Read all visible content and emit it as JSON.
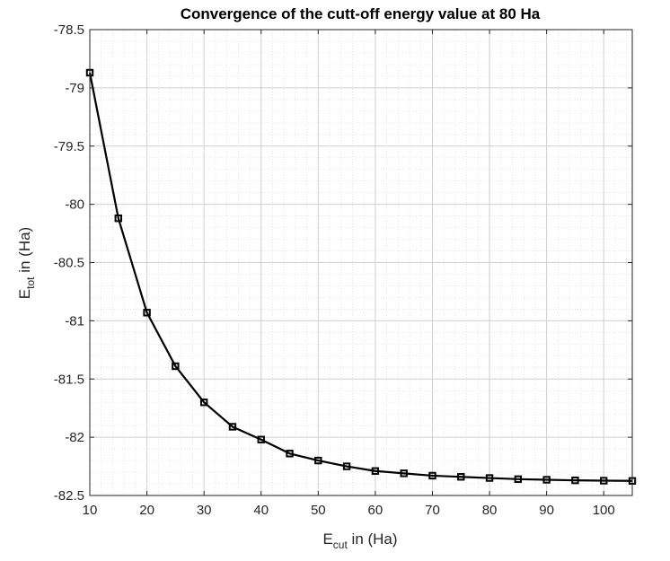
{
  "chart_data": {
    "type": "line",
    "title": "Convergence of the cutt-off energy value at 80 Ha",
    "xlabel": {
      "base": "E",
      "sub": "cut",
      "rest": " in (Ha)"
    },
    "ylabel": {
      "base": "E",
      "sub": "tot",
      "rest": " in (Ha)"
    },
    "xlim": [
      10,
      105
    ],
    "ylim": [
      -82.5,
      -78.5
    ],
    "xticks": [
      10,
      20,
      30,
      40,
      50,
      60,
      70,
      80,
      90,
      100
    ],
    "xtick_labels": [
      "10",
      "20",
      "30",
      "40",
      "50",
      "60",
      "70",
      "80",
      "90",
      "100"
    ],
    "yticks": [
      -78.5,
      -79,
      -79.5,
      -80,
      -80.5,
      -81,
      -81.5,
      -82,
      -82.5
    ],
    "ytick_labels": [
      "-78.5",
      "-79",
      "-79.5",
      "-80",
      "-80.5",
      "-81",
      "-81.5",
      "-82",
      "-82.5"
    ],
    "grid": true,
    "minor_grid": true,
    "line_color": "#000000",
    "marker": "square",
    "x": [
      10,
      15,
      20,
      25,
      30,
      35,
      40,
      45,
      50,
      55,
      60,
      65,
      70,
      75,
      80,
      85,
      90,
      95,
      100,
      105
    ],
    "y": [
      -78.87,
      -80.12,
      -80.93,
      -81.39,
      -81.7,
      -81.91,
      -82.02,
      -82.14,
      -82.2,
      -82.25,
      -82.29,
      -82.31,
      -82.33,
      -82.34,
      -82.35,
      -82.36,
      -82.365,
      -82.37,
      -82.373,
      -82.375
    ]
  }
}
